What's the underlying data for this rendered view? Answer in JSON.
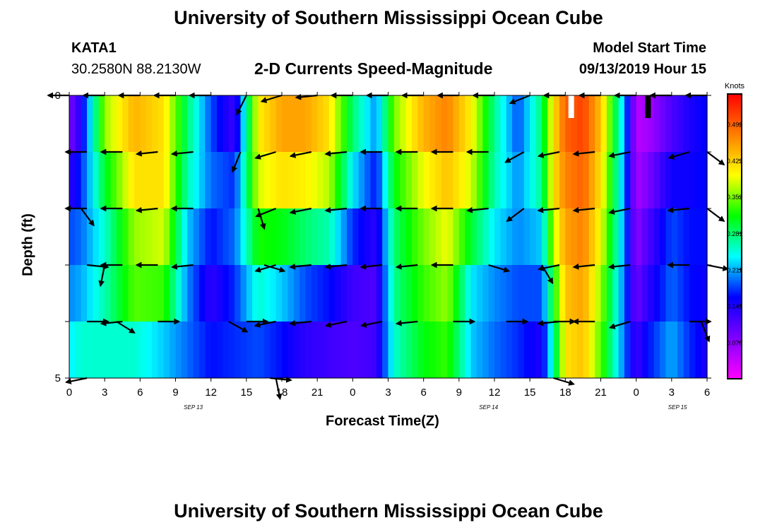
{
  "page": {
    "title_top": "University of Southern Mississippi Ocean Cube",
    "title_bottom": "University of Southern Mississippi Ocean Cube",
    "station_id": "KATA1",
    "station_coords": "30.2580N 88.2130W",
    "subtitle": "2-D Currents Speed-Magnitude",
    "model_start_label": "Model Start Time",
    "model_start_value": "09/13/2019 Hour 15"
  },
  "chart_data": {
    "type": "heatmap",
    "title": "2-D Currents Speed-Magnitude",
    "xlabel": "Forecast Time(Z)",
    "ylabel": "Depth (ft)",
    "x_tick_labels": [
      "0",
      "3",
      "6",
      "9",
      "12",
      "15",
      "18",
      "21",
      "0",
      "3",
      "6",
      "9",
      "12",
      "15",
      "18",
      "21",
      "0",
      "3",
      "6"
    ],
    "x_hours": [
      0,
      3,
      6,
      9,
      12,
      15,
      18,
      21,
      24,
      27,
      30,
      33,
      36,
      39,
      42,
      45,
      48,
      51,
      54
    ],
    "date_labels": [
      {
        "text": "SEP 13",
        "hour": 10.5
      },
      {
        "text": "SEP 14",
        "hour": 35.5
      },
      {
        "text": "SEP 15",
        "hour": 51.5
      }
    ],
    "y_tick_labels": [
      "0",
      "5"
    ],
    "ylim": [
      0,
      5
    ],
    "xlim": [
      0,
      54
    ],
    "colorbar": {
      "title": "Knots",
      "tick_labels": [
        "0.492",
        "0.422",
        "0.352",
        "0.281",
        "0.211",
        "0.141",
        "0.070"
      ],
      "tick_values": [
        0.492,
        0.422,
        0.352,
        0.281,
        0.211,
        0.141,
        0.07
      ],
      "range": [
        0.0,
        0.55
      ],
      "colors_low_to_high": [
        "#ff00ff",
        "#8000ff",
        "#0000ff",
        "#00ffff",
        "#00ff00",
        "#ffff00",
        "#ff8000",
        "#ff0000"
      ]
    },
    "depth_layers": 5,
    "speed_keyframes_hours": [
      0,
      1,
      3,
      5.5,
      8,
      10,
      12,
      14,
      16,
      18,
      20,
      22,
      24,
      26,
      27.5,
      30,
      32,
      34,
      36,
      38,
      40,
      41,
      42,
      43.5,
      45,
      47,
      48,
      49,
      51,
      52.5,
      54
    ],
    "speed_rows": [
      [
        0.06,
        0.12,
        0.38,
        0.44,
        0.4,
        0.28,
        0.16,
        0.1,
        0.4,
        0.46,
        0.46,
        0.42,
        0.3,
        0.22,
        0.36,
        0.46,
        0.48,
        0.4,
        0.26,
        0.16,
        0.26,
        0.4,
        0.5,
        0.52,
        0.44,
        0.22,
        0.04,
        0.05,
        0.1,
        0.14,
        0.16
      ],
      [
        0.1,
        0.16,
        0.34,
        0.44,
        0.42,
        0.28,
        0.2,
        0.14,
        0.4,
        0.44,
        0.44,
        0.4,
        0.26,
        0.18,
        0.34,
        0.42,
        0.46,
        0.4,
        0.28,
        0.2,
        0.3,
        0.42,
        0.48,
        0.5,
        0.42,
        0.2,
        0.05,
        0.06,
        0.12,
        0.14,
        0.16
      ],
      [
        0.16,
        0.18,
        0.26,
        0.38,
        0.4,
        0.24,
        0.18,
        0.2,
        0.36,
        0.38,
        0.36,
        0.34,
        0.2,
        0.14,
        0.28,
        0.36,
        0.4,
        0.36,
        0.24,
        0.2,
        0.24,
        0.4,
        0.46,
        0.48,
        0.4,
        0.2,
        0.06,
        0.1,
        0.18,
        0.16,
        0.16
      ],
      [
        0.2,
        0.2,
        0.24,
        0.34,
        0.36,
        0.2,
        0.14,
        0.18,
        0.28,
        0.24,
        0.2,
        0.18,
        0.14,
        0.12,
        0.28,
        0.34,
        0.38,
        0.24,
        0.22,
        0.2,
        0.2,
        0.34,
        0.44,
        0.46,
        0.38,
        0.2,
        0.08,
        0.12,
        0.18,
        0.16,
        0.16
      ],
      [
        0.2,
        0.22,
        0.28,
        0.34,
        0.3,
        0.2,
        0.12,
        0.16,
        0.22,
        0.2,
        0.16,
        0.14,
        0.1,
        0.1,
        0.26,
        0.32,
        0.34,
        0.22,
        0.18,
        0.16,
        0.16,
        0.28,
        0.42,
        0.44,
        0.34,
        0.18,
        0.1,
        0.14,
        0.2,
        0.16,
        0.14
      ],
      [
        0.26,
        0.28,
        0.22,
        0.16,
        0.14,
        0.18,
        0.2,
        0.18,
        0.14,
        0.12,
        0.1,
        0.1,
        0.12,
        0.14,
        0.24,
        0.3,
        0.32,
        0.22,
        0.2,
        0.18,
        0.12,
        0.24,
        0.4,
        0.42,
        0.34,
        0.2,
        0.14,
        0.18,
        0.22,
        0.18,
        0.14
      ]
    ],
    "missing_data_markers": [
      {
        "hour": 42.5,
        "color": "#ffffff",
        "depth_from": 0,
        "depth_to": 0.5
      },
      {
        "hour": 49.0,
        "color": "#000000",
        "depth_from": 0,
        "depth_to": 0.5
      }
    ],
    "vectors": [
      [
        [
          0,
          -1.0,
          0.0
        ],
        [
          3,
          -1.0,
          0.0
        ],
        [
          6,
          -1.0,
          0.0
        ],
        [
          9,
          -1.0,
          0.0
        ],
        [
          12,
          -1.0,
          0.0
        ],
        [
          15,
          -0.4,
          0.8
        ],
        [
          18,
          -1.0,
          0.3
        ],
        [
          21,
          -1.0,
          0.1
        ],
        [
          24,
          -1.0,
          0.0
        ],
        [
          27,
          -1.0,
          0.0
        ],
        [
          30,
          -1.0,
          0.0
        ],
        [
          33,
          -1.0,
          0.0
        ],
        [
          36,
          -1.0,
          0.0
        ],
        [
          39,
          -1.0,
          0.4
        ],
        [
          42,
          -1.0,
          0.0
        ],
        [
          45,
          -1.0,
          0.0
        ],
        [
          48,
          -1.0,
          0.0
        ],
        [
          51,
          -1.0,
          0.0
        ],
        [
          54,
          -1.0,
          0.0
        ]
      ],
      [
        [
          1.5,
          -1.0,
          0.0
        ],
        [
          4.5,
          -1.0,
          0.0
        ],
        [
          7.5,
          -1.0,
          0.1
        ],
        [
          10.5,
          -1.0,
          0.1
        ],
        [
          14.5,
          -0.4,
          1.0
        ],
        [
          17.5,
          -1.0,
          0.3
        ],
        [
          20.5,
          -1.0,
          0.2
        ],
        [
          23.5,
          -1.0,
          0.1
        ],
        [
          26.5,
          -1.0,
          0.0
        ],
        [
          29.5,
          -1.0,
          0.0
        ],
        [
          32.5,
          -1.0,
          0.0
        ],
        [
          35.5,
          -1.0,
          0.0
        ],
        [
          38.5,
          -0.9,
          0.5
        ],
        [
          41.5,
          -1.0,
          0.2
        ],
        [
          44.5,
          -1.0,
          0.1
        ],
        [
          47.5,
          -1.0,
          0.2
        ],
        [
          52.5,
          -1.0,
          0.3
        ],
        [
          54,
          0.8,
          0.6
        ]
      ],
      [
        [
          1.0,
          0.6,
          0.8
        ],
        [
          1.5,
          -1.0,
          0.0
        ],
        [
          4.5,
          -1.0,
          0.0
        ],
        [
          7.5,
          -1.0,
          0.1
        ],
        [
          10.5,
          -1.0,
          0.0
        ],
        [
          16.0,
          0.3,
          1.0
        ],
        [
          17.5,
          -1.0,
          0.4
        ],
        [
          20.5,
          -1.0,
          0.2
        ],
        [
          23.5,
          -1.0,
          0.1
        ],
        [
          26.5,
          -1.0,
          0.0
        ],
        [
          29.5,
          -1.0,
          0.0
        ],
        [
          32.5,
          -1.0,
          0.0
        ],
        [
          35.5,
          -1.0,
          0.1
        ],
        [
          38.5,
          -0.8,
          0.6
        ],
        [
          41.5,
          -1.0,
          0.1
        ],
        [
          44.5,
          -1.0,
          0.1
        ],
        [
          47.5,
          -1.0,
          0.2
        ],
        [
          52.5,
          -1.0,
          0.1
        ],
        [
          54,
          0.8,
          0.6
        ]
      ],
      [
        [
          1.5,
          1.0,
          0.1
        ],
        [
          3.0,
          -0.2,
          1.0
        ],
        [
          4.5,
          -1.0,
          0.0
        ],
        [
          7.5,
          -1.0,
          0.0
        ],
        [
          10.5,
          -1.0,
          0.1
        ],
        [
          16.5,
          1.0,
          0.3
        ],
        [
          17.5,
          -1.0,
          0.3
        ],
        [
          20.5,
          -1.0,
          0.1
        ],
        [
          23.5,
          -1.0,
          0.1
        ],
        [
          26.5,
          -1.0,
          0.1
        ],
        [
          29.5,
          -1.0,
          0.1
        ],
        [
          32.5,
          -1.0,
          0.0
        ],
        [
          35.5,
          1.0,
          0.3
        ],
        [
          40.0,
          0.6,
          1.0
        ],
        [
          41.5,
          -1.0,
          0.2
        ],
        [
          44.5,
          -1.0,
          0.1
        ],
        [
          47.5,
          -1.0,
          0.1
        ],
        [
          52.5,
          -1.0,
          0.0
        ],
        [
          54,
          1.0,
          0.2
        ]
      ],
      [
        [
          1.5,
          1.0,
          0.0
        ],
        [
          4.0,
          0.8,
          0.5
        ],
        [
          4.5,
          -1.0,
          0.1
        ],
        [
          7.5,
          1.0,
          0.0
        ],
        [
          13.5,
          0.9,
          0.5
        ],
        [
          15.0,
          1.0,
          0.0
        ],
        [
          17.5,
          -1.0,
          0.2
        ],
        [
          20.5,
          -1.0,
          0.1
        ],
        [
          23.5,
          -1.0,
          0.2
        ],
        [
          26.5,
          -1.0,
          0.2
        ],
        [
          29.5,
          -1.0,
          0.1
        ],
        [
          32.5,
          1.0,
          0.0
        ],
        [
          37.0,
          1.0,
          0.0
        ],
        [
          41.0,
          1.0,
          0.0
        ],
        [
          41.5,
          -1.0,
          0.1
        ],
        [
          44.5,
          -1.0,
          0.0
        ],
        [
          47.5,
          -1.0,
          0.3
        ],
        [
          52.5,
          1.0,
          0.0
        ],
        [
          53.5,
          0.4,
          1.0
        ]
      ],
      [
        [
          1.5,
          -1.0,
          0.2
        ],
        [
          17.5,
          0.2,
          1.0
        ],
        [
          17.0,
          1.0,
          0.1
        ],
        [
          41.0,
          1.0,
          0.3
        ]
      ]
    ]
  }
}
